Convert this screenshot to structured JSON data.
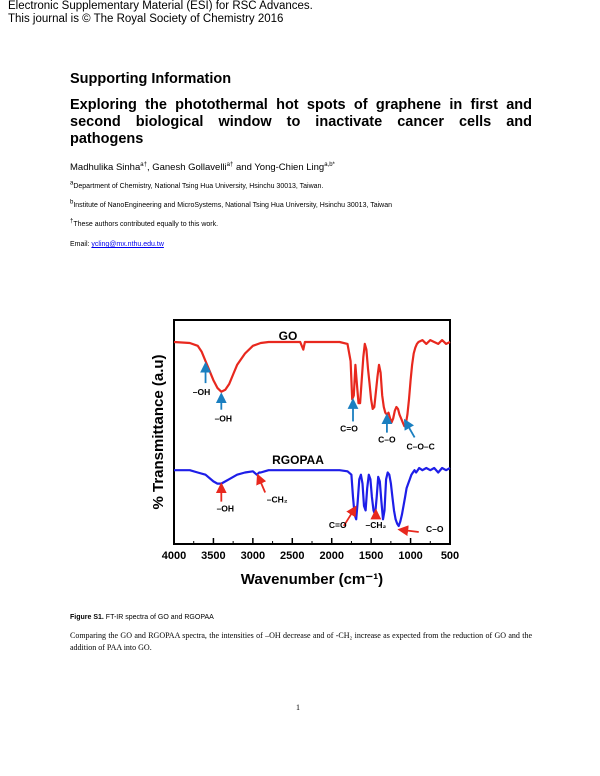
{
  "header": {
    "line1": "Electronic Supplementary Material (ESI) for RSC Advances.",
    "line2": "This journal is © The Royal Society of Chemistry 2016"
  },
  "heading": "Supporting Information",
  "title": "Exploring the photothermal hot spots of graphene in first and second biological window to inactivate cancer cells and pathogens",
  "authors": {
    "a1": "Madhulika Sinha",
    "a1_sup": "a†",
    "a2": ", Ganesh Gollavelli",
    "a2_sup": "a†",
    "a3": " and Yong-Chien Ling",
    "a3_sup": "a,b*"
  },
  "affiliations": {
    "a_sup": "a",
    "a": "Department of Chemistry, National Tsing Hua University, Hsinchu 30013, Taiwan.",
    "b_sup": "b",
    "b": "Institute of NanoEngineering and MicroSystems, National Tsing Hua University, Hsinchu 30013, Taiwan",
    "dagger_sup": "†",
    "dagger": "These authors contributed equally to this work.",
    "email_label": "Email: ",
    "email": "ycling@mx.nthu.edu.tw"
  },
  "caption": {
    "label": "Figure S1.",
    "text": " FT-IR spectra of GO and RGOPAA"
  },
  "body_text": "Comparing the GO and RGOPAA spectra, the intensities of –OH decrease and of -CH₂ increase as expected from the reduction of GO and the addition of PAA into GO.",
  "page_number": "1",
  "chart_data": {
    "type": "line",
    "xlabel": "Wavenumber (cm⁻¹)",
    "ylabel": "% Transmittance (a.u)",
    "xlim": [
      4000,
      500
    ],
    "xticks": [
      "4000",
      "3500",
      "3000",
      "2500",
      "2000",
      "1500",
      "1000",
      "500"
    ],
    "y_ticks_shown": false,
    "series": [
      {
        "name": "GO",
        "color": "#e8281e",
        "x": [
          4000,
          3800,
          3700,
          3650,
          3600,
          3550,
          3500,
          3450,
          3400,
          3350,
          3300,
          3250,
          3200,
          3100,
          3000,
          2900,
          2800,
          2700,
          2400,
          2360,
          2340,
          2300,
          2000,
          1900,
          1800,
          1760,
          1740,
          1720,
          1700,
          1680,
          1660,
          1640,
          1620,
          1600,
          1580,
          1560,
          1540,
          1520,
          1500,
          1480,
          1460,
          1440,
          1420,
          1400,
          1380,
          1360,
          1340,
          1320,
          1300,
          1280,
          1260,
          1240,
          1220,
          1200,
          1180,
          1160,
          1140,
          1120,
          1100,
          1080,
          1060,
          1040,
          1020,
          1000,
          980,
          960,
          940,
          920,
          900,
          850,
          800,
          750,
          700,
          650,
          600,
          550,
          500
        ],
        "y": [
          100,
          99.5,
          98,
          95,
          90,
          85,
          80,
          76,
          74,
          75,
          78,
          83,
          88,
          94,
          98,
          99.5,
          100,
          100,
          100,
          96,
          100,
          100,
          100,
          100,
          99,
          90,
          70,
          72,
          88,
          78,
          68,
          68,
          80,
          92,
          99,
          96,
          86,
          78,
          70,
          65,
          66,
          74,
          82,
          88,
          84,
          72,
          66,
          63,
          62,
          63,
          60,
          58,
          60,
          64,
          66,
          65,
          62,
          60,
          58,
          56,
          57,
          62,
          70,
          80,
          88,
          94,
          97,
          99,
          100,
          101,
          99,
          101,
          100,
          99,
          101,
          99,
          100
        ]
      },
      {
        "name": "RGOPAA",
        "color": "#1e1ee8",
        "x": [
          4000,
          3800,
          3700,
          3600,
          3500,
          3450,
          3400,
          3350,
          3300,
          3200,
          3100,
          3000,
          2950,
          2920,
          2900,
          2850,
          2800,
          2600,
          2400,
          2200,
          2000,
          1900,
          1800,
          1750,
          1730,
          1710,
          1690,
          1670,
          1650,
          1630,
          1610,
          1590,
          1570,
          1550,
          1530,
          1510,
          1490,
          1470,
          1450,
          1430,
          1410,
          1390,
          1370,
          1350,
          1330,
          1310,
          1290,
          1270,
          1250,
          1230,
          1210,
          1190,
          1170,
          1150,
          1130,
          1110,
          1090,
          1070,
          1050,
          1030,
          1010,
          990,
          970,
          950,
          930,
          910,
          890,
          850,
          800,
          750,
          700,
          650,
          600,
          550,
          500
        ],
        "y": [
          60,
          60,
          59,
          58,
          55,
          54,
          54,
          55,
          56,
          58,
          59,
          59.5,
          58,
          59,
          59,
          59.5,
          60,
          60,
          60,
          60,
          60,
          60,
          59.5,
          58,
          48,
          40,
          38,
          46,
          56,
          58,
          54,
          44,
          42,
          52,
          58,
          56,
          48,
          42,
          40,
          48,
          57,
          55,
          46,
          38,
          42,
          56,
          59,
          58,
          54,
          48,
          42,
          38,
          36,
          35,
          37,
          40,
          44,
          48,
          52,
          54,
          56,
          58,
          59,
          60,
          59,
          60,
          61,
          60,
          61,
          60,
          61,
          59,
          61,
          60,
          61
        ]
      }
    ],
    "series_labels": [
      {
        "text": "GO",
        "series": "GO"
      },
      {
        "text": "RGOPAA",
        "series": "RGOPAA"
      }
    ],
    "annotations": [
      {
        "text": "–OH",
        "series": "GO",
        "x": 3600
      },
      {
        "text": "–OH",
        "series": "GO",
        "x": 3400
      },
      {
        "text": "C=O",
        "series": "GO",
        "x": 1730
      },
      {
        "text": "C–O",
        "series": "GO",
        "x": 1300
      },
      {
        "text": "C–O–C",
        "series": "GO",
        "x": 1050
      },
      {
        "text": "–OH",
        "series": "RGOPAA",
        "x": 3400
      },
      {
        "text": "–CH₂",
        "series": "RGOPAA",
        "x": 2920
      },
      {
        "text": "C=O",
        "series": "RGOPAA",
        "x": 1720
      },
      {
        "text": "–CH₂",
        "series": "RGOPAA",
        "x": 1440
      },
      {
        "text": "C–O",
        "series": "RGOPAA",
        "x": 1150
      }
    ]
  }
}
